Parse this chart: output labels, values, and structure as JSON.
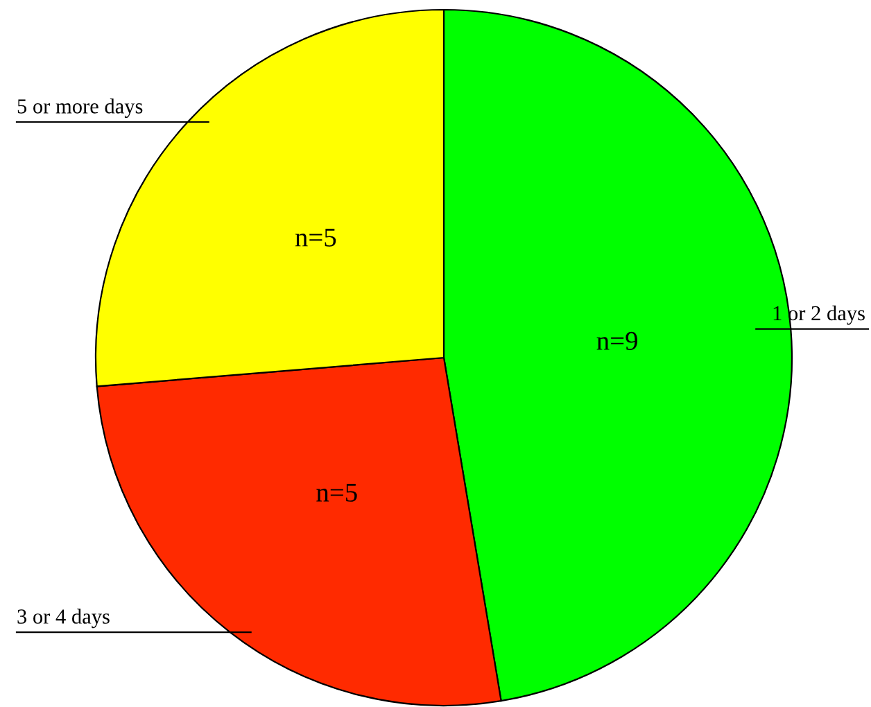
{
  "chart_data": {
    "type": "pie",
    "categories": [
      "1 or 2 days",
      "3 or 4 days",
      "5 or more days"
    ],
    "values": [
      9,
      5,
      5
    ],
    "colors": [
      "#00ff00",
      "#ff2a00",
      "#ffff00"
    ],
    "value_labels": [
      "n=9",
      "n=5",
      "n=5"
    ]
  }
}
